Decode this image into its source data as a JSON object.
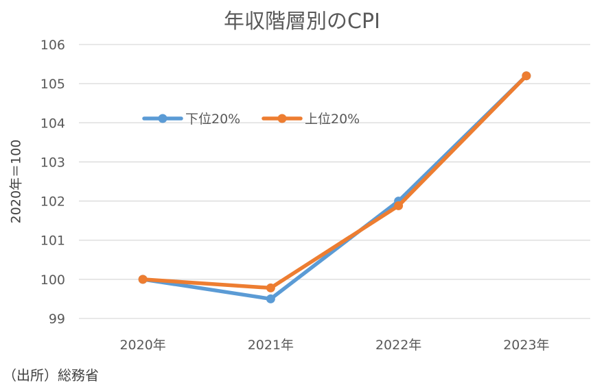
{
  "chart_data": {
    "type": "line",
    "title": "年収階層別のCPI",
    "ylabel": "2020年＝100",
    "xlabel": "",
    "categories": [
      "2020年",
      "2021年",
      "2022年",
      "2023年"
    ],
    "series": [
      {
        "name": "下位20%",
        "color": "#5B9BD5",
        "values": [
          100,
          99.5,
          102.0,
          105.2
        ]
      },
      {
        "name": "上位20%",
        "color": "#ED7D31",
        "values": [
          100,
          99.78,
          101.88,
          105.2
        ]
      }
    ],
    "ylim": [
      99,
      106
    ],
    "yticks": [
      99,
      100,
      101,
      102,
      103,
      104,
      105,
      106
    ],
    "grid": true,
    "legend_position": "upper-left inside plot"
  },
  "source": "（出所）総務省"
}
